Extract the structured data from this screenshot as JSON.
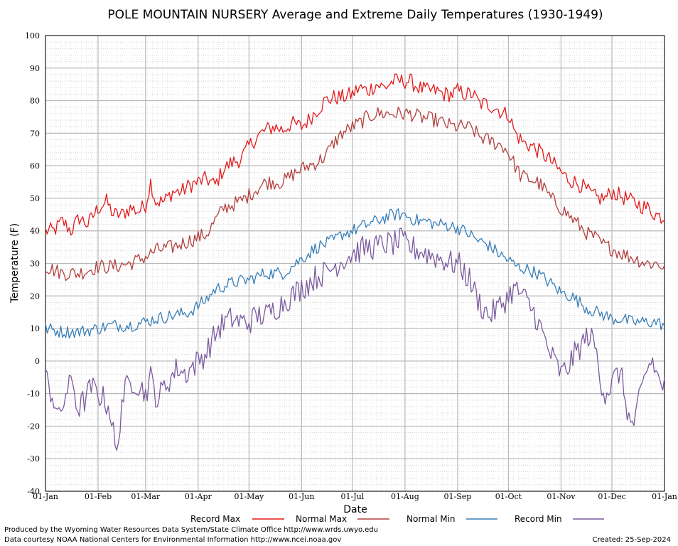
{
  "chart_data": {
    "type": "line",
    "title": "POLE MOUNTAIN NURSERY Average and Extreme Daily Temperatures (1930-1949)",
    "xlabel": "Date",
    "ylabel": "Temperature (F)",
    "ylim": [
      -40,
      100
    ],
    "yticks": [
      -40,
      -30,
      -20,
      -10,
      0,
      10,
      20,
      30,
      40,
      50,
      60,
      70,
      80,
      90,
      100
    ],
    "x_tick_labels": [
      "01-Jan",
      "01-Feb",
      "01-Mar",
      "01-Apr",
      "01-May",
      "01-Jun",
      "01-Jul",
      "01-Aug",
      "01-Sep",
      "01-Oct",
      "01-Nov",
      "01-Dec",
      "01-Jan"
    ],
    "x_tick_days": [
      0,
      31,
      59,
      90,
      120,
      151,
      181,
      212,
      243,
      273,
      304,
      334,
      365
    ],
    "grid": true,
    "legend_position": "bottom",
    "series": [
      {
        "name": "Record Max",
        "color": "#e41a1c",
        "anchors": [
          [
            0,
            40
          ],
          [
            5,
            40
          ],
          [
            10,
            43
          ],
          [
            15,
            40
          ],
          [
            20,
            44
          ],
          [
            25,
            42
          ],
          [
            31,
            47
          ],
          [
            36,
            49
          ],
          [
            40,
            45
          ],
          [
            45,
            45
          ],
          [
            50,
            47
          ],
          [
            55,
            46
          ],
          [
            59,
            48
          ],
          [
            62,
            55
          ],
          [
            65,
            49
          ],
          [
            70,
            49
          ],
          [
            75,
            52
          ],
          [
            80,
            52
          ],
          [
            85,
            54
          ],
          [
            90,
            55
          ],
          [
            95,
            56
          ],
          [
            100,
            54
          ],
          [
            105,
            59
          ],
          [
            110,
            61
          ],
          [
            115,
            62
          ],
          [
            120,
            66
          ],
          [
            125,
            69
          ],
          [
            130,
            71
          ],
          [
            135,
            72
          ],
          [
            140,
            71
          ],
          [
            145,
            73
          ],
          [
            151,
            72
          ],
          [
            155,
            74
          ],
          [
            160,
            77
          ],
          [
            165,
            80
          ],
          [
            170,
            81
          ],
          [
            175,
            81
          ],
          [
            181,
            82
          ],
          [
            185,
            84
          ],
          [
            190,
            83
          ],
          [
            195,
            85
          ],
          [
            200,
            84
          ],
          [
            205,
            86
          ],
          [
            210,
            86
          ],
          [
            212,
            86
          ],
          [
            215,
            86
          ],
          [
            220,
            84
          ],
          [
            225,
            83
          ],
          [
            230,
            83
          ],
          [
            235,
            82
          ],
          [
            240,
            82
          ],
          [
            243,
            83
          ],
          [
            248,
            82
          ],
          [
            252,
            82
          ],
          [
            256,
            79
          ],
          [
            260,
            79
          ],
          [
            265,
            78
          ],
          [
            270,
            76
          ],
          [
            273,
            76
          ],
          [
            277,
            70
          ],
          [
            282,
            67
          ],
          [
            287,
            66
          ],
          [
            292,
            64
          ],
          [
            297,
            62
          ],
          [
            304,
            58
          ],
          [
            308,
            56
          ],
          [
            312,
            55
          ],
          [
            316,
            54
          ],
          [
            320,
            52
          ],
          [
            325,
            50
          ],
          [
            330,
            50
          ],
          [
            334,
            52
          ],
          [
            338,
            51
          ],
          [
            342,
            50
          ],
          [
            346,
            49
          ],
          [
            350,
            48
          ],
          [
            355,
            47
          ],
          [
            360,
            45
          ],
          [
            365,
            44
          ]
        ],
        "amp": 2.5
      },
      {
        "name": "Normal Max",
        "color": "#b2403f",
        "anchors": [
          [
            0,
            29
          ],
          [
            10,
            27
          ],
          [
            20,
            27
          ],
          [
            31,
            29
          ],
          [
            40,
            29
          ],
          [
            50,
            30
          ],
          [
            59,
            32
          ],
          [
            65,
            34
          ],
          [
            75,
            35
          ],
          [
            85,
            37
          ],
          [
            90,
            38
          ],
          [
            95,
            39
          ],
          [
            100,
            43
          ],
          [
            105,
            47
          ],
          [
            110,
            48
          ],
          [
            115,
            49
          ],
          [
            120,
            51
          ],
          [
            125,
            53
          ],
          [
            130,
            55
          ],
          [
            140,
            55
          ],
          [
            145,
            57
          ],
          [
            151,
            59
          ],
          [
            155,
            60
          ],
          [
            160,
            61
          ],
          [
            165,
            63
          ],
          [
            170,
            67
          ],
          [
            175,
            70
          ],
          [
            181,
            72
          ],
          [
            185,
            73
          ],
          [
            190,
            75
          ],
          [
            195,
            76
          ],
          [
            200,
            76
          ],
          [
            205,
            76
          ],
          [
            210,
            76
          ],
          [
            212,
            76
          ],
          [
            215,
            76
          ],
          [
            220,
            75
          ],
          [
            230,
            74
          ],
          [
            235,
            73
          ],
          [
            240,
            72
          ],
          [
            243,
            72
          ],
          [
            248,
            72
          ],
          [
            252,
            71
          ],
          [
            256,
            69
          ],
          [
            260,
            68
          ],
          [
            265,
            67
          ],
          [
            270,
            66
          ],
          [
            273,
            64
          ],
          [
            276,
            61
          ],
          [
            280,
            57
          ],
          [
            285,
            56
          ],
          [
            290,
            55
          ],
          [
            294,
            53
          ],
          [
            298,
            50
          ],
          [
            302,
            48
          ],
          [
            306,
            46
          ],
          [
            310,
            44
          ],
          [
            314,
            42
          ],
          [
            318,
            40
          ],
          [
            320,
            39
          ],
          [
            324,
            38
          ],
          [
            328,
            36
          ],
          [
            332,
            35
          ],
          [
            336,
            34
          ],
          [
            340,
            33
          ],
          [
            345,
            32
          ],
          [
            350,
            31
          ],
          [
            355,
            30
          ],
          [
            360,
            30
          ],
          [
            365,
            29
          ]
        ],
        "amp": 2.3
      },
      {
        "name": "Normal Min",
        "color": "#377eb8",
        "anchors": [
          [
            0,
            10
          ],
          [
            10,
            9
          ],
          [
            20,
            9
          ],
          [
            31,
            10
          ],
          [
            40,
            11
          ],
          [
            50,
            11
          ],
          [
            59,
            12
          ],
          [
            65,
            13
          ],
          [
            75,
            14
          ],
          [
            85,
            15
          ],
          [
            90,
            17
          ],
          [
            95,
            19
          ],
          [
            100,
            22
          ],
          [
            110,
            24
          ],
          [
            120,
            25
          ],
          [
            130,
            27
          ],
          [
            140,
            27
          ],
          [
            150,
            31
          ],
          [
            155,
            33
          ],
          [
            160,
            35
          ],
          [
            165,
            36
          ],
          [
            170,
            37
          ],
          [
            175,
            39
          ],
          [
            181,
            40
          ],
          [
            185,
            41
          ],
          [
            190,
            42
          ],
          [
            195,
            43
          ],
          [
            200,
            44
          ],
          [
            205,
            45
          ],
          [
            210,
            45
          ],
          [
            212,
            45
          ],
          [
            215,
            44
          ],
          [
            220,
            43
          ],
          [
            225,
            43
          ],
          [
            230,
            42
          ],
          [
            235,
            42
          ],
          [
            243,
            41
          ],
          [
            250,
            39
          ],
          [
            255,
            37
          ],
          [
            260,
            36
          ],
          [
            265,
            34
          ],
          [
            270,
            32
          ],
          [
            273,
            31
          ],
          [
            278,
            29
          ],
          [
            285,
            28
          ],
          [
            290,
            27
          ],
          [
            295,
            25
          ],
          [
            300,
            23
          ],
          [
            304,
            21
          ],
          [
            310,
            20
          ],
          [
            315,
            18
          ],
          [
            320,
            16
          ],
          [
            325,
            15
          ],
          [
            330,
            14
          ],
          [
            334,
            13
          ],
          [
            340,
            13
          ],
          [
            345,
            12
          ],
          [
            350,
            12
          ],
          [
            355,
            12
          ],
          [
            360,
            12
          ],
          [
            365,
            11
          ]
        ],
        "amp": 2.0
      },
      {
        "name": "Record Min",
        "color": "#7a5a9e",
        "anchors": [
          [
            0,
            -5
          ],
          [
            5,
            -12
          ],
          [
            8,
            -18
          ],
          [
            12,
            -10
          ],
          [
            16,
            -6
          ],
          [
            19,
            -15
          ],
          [
            23,
            -12
          ],
          [
            27,
            -8
          ],
          [
            31,
            -10
          ],
          [
            35,
            -12
          ],
          [
            38,
            -15
          ],
          [
            40,
            -22
          ],
          [
            42,
            -30
          ],
          [
            45,
            -12
          ],
          [
            48,
            -8
          ],
          [
            52,
            -6
          ],
          [
            56,
            -8
          ],
          [
            59,
            -10
          ],
          [
            62,
            -5
          ],
          [
            66,
            -12
          ],
          [
            70,
            -8
          ],
          [
            74,
            -5
          ],
          [
            78,
            -2
          ],
          [
            82,
            -4
          ],
          [
            86,
            -2
          ],
          [
            90,
            0
          ],
          [
            94,
            2
          ],
          [
            98,
            6
          ],
          [
            102,
            10
          ],
          [
            106,
            12
          ],
          [
            110,
            13
          ],
          [
            115,
            12
          ],
          [
            120,
            12
          ],
          [
            125,
            14
          ],
          [
            130,
            14
          ],
          [
            135,
            16
          ],
          [
            140,
            18
          ],
          [
            145,
            20
          ],
          [
            150,
            22
          ],
          [
            155,
            24
          ],
          [
            160,
            26
          ],
          [
            165,
            27
          ],
          [
            170,
            29
          ],
          [
            175,
            31
          ],
          [
            181,
            33
          ],
          [
            185,
            34
          ],
          [
            190,
            35
          ],
          [
            195,
            35
          ],
          [
            200,
            36
          ],
          [
            205,
            36
          ],
          [
            210,
            37
          ],
          [
            212,
            36
          ],
          [
            215,
            35
          ],
          [
            220,
            34
          ],
          [
            225,
            33
          ],
          [
            230,
            32
          ],
          [
            235,
            31
          ],
          [
            240,
            30
          ],
          [
            243,
            30
          ],
          [
            246,
            28
          ],
          [
            250,
            25
          ],
          [
            254,
            20
          ],
          [
            258,
            16
          ],
          [
            262,
            14
          ],
          [
            266,
            16
          ],
          [
            270,
            18
          ],
          [
            273,
            20
          ],
          [
            276,
            22
          ],
          [
            280,
            21
          ],
          [
            284,
            18
          ],
          [
            288,
            15
          ],
          [
            292,
            10
          ],
          [
            296,
            4
          ],
          [
            300,
            0
          ],
          [
            304,
            -4
          ],
          [
            308,
            -2
          ],
          [
            312,
            2
          ],
          [
            316,
            5
          ],
          [
            320,
            8
          ],
          [
            324,
            5
          ],
          [
            327,
            -5
          ],
          [
            330,
            -10
          ],
          [
            333,
            -8
          ],
          [
            336,
            -5
          ],
          [
            339,
            -3
          ],
          [
            342,
            -12
          ],
          [
            345,
            -20
          ],
          [
            348,
            -18
          ],
          [
            351,
            -10
          ],
          [
            355,
            -2
          ],
          [
            358,
            0
          ],
          [
            361,
            -5
          ],
          [
            365,
            -8
          ]
        ],
        "amp": 4.0
      }
    ]
  },
  "legend": {
    "items": [
      {
        "label": "Record Max",
        "color": "#e41a1c"
      },
      {
        "label": "Normal Max",
        "color": "#b2403f"
      },
      {
        "label": "Normal Min",
        "color": "#377eb8"
      },
      {
        "label": "Record Min",
        "color": "#7a5a9e"
      }
    ]
  },
  "footer": {
    "produced_by": "Produced by the Wyoming Water Resources Data System/State Climate Office http://www.wrds.uwyo.edu",
    "courtesy": "Data courtesy NOAA National Centers for Environmental Information http://www.ncei.noaa.gov",
    "created": "Created:  25-Sep-2024"
  }
}
